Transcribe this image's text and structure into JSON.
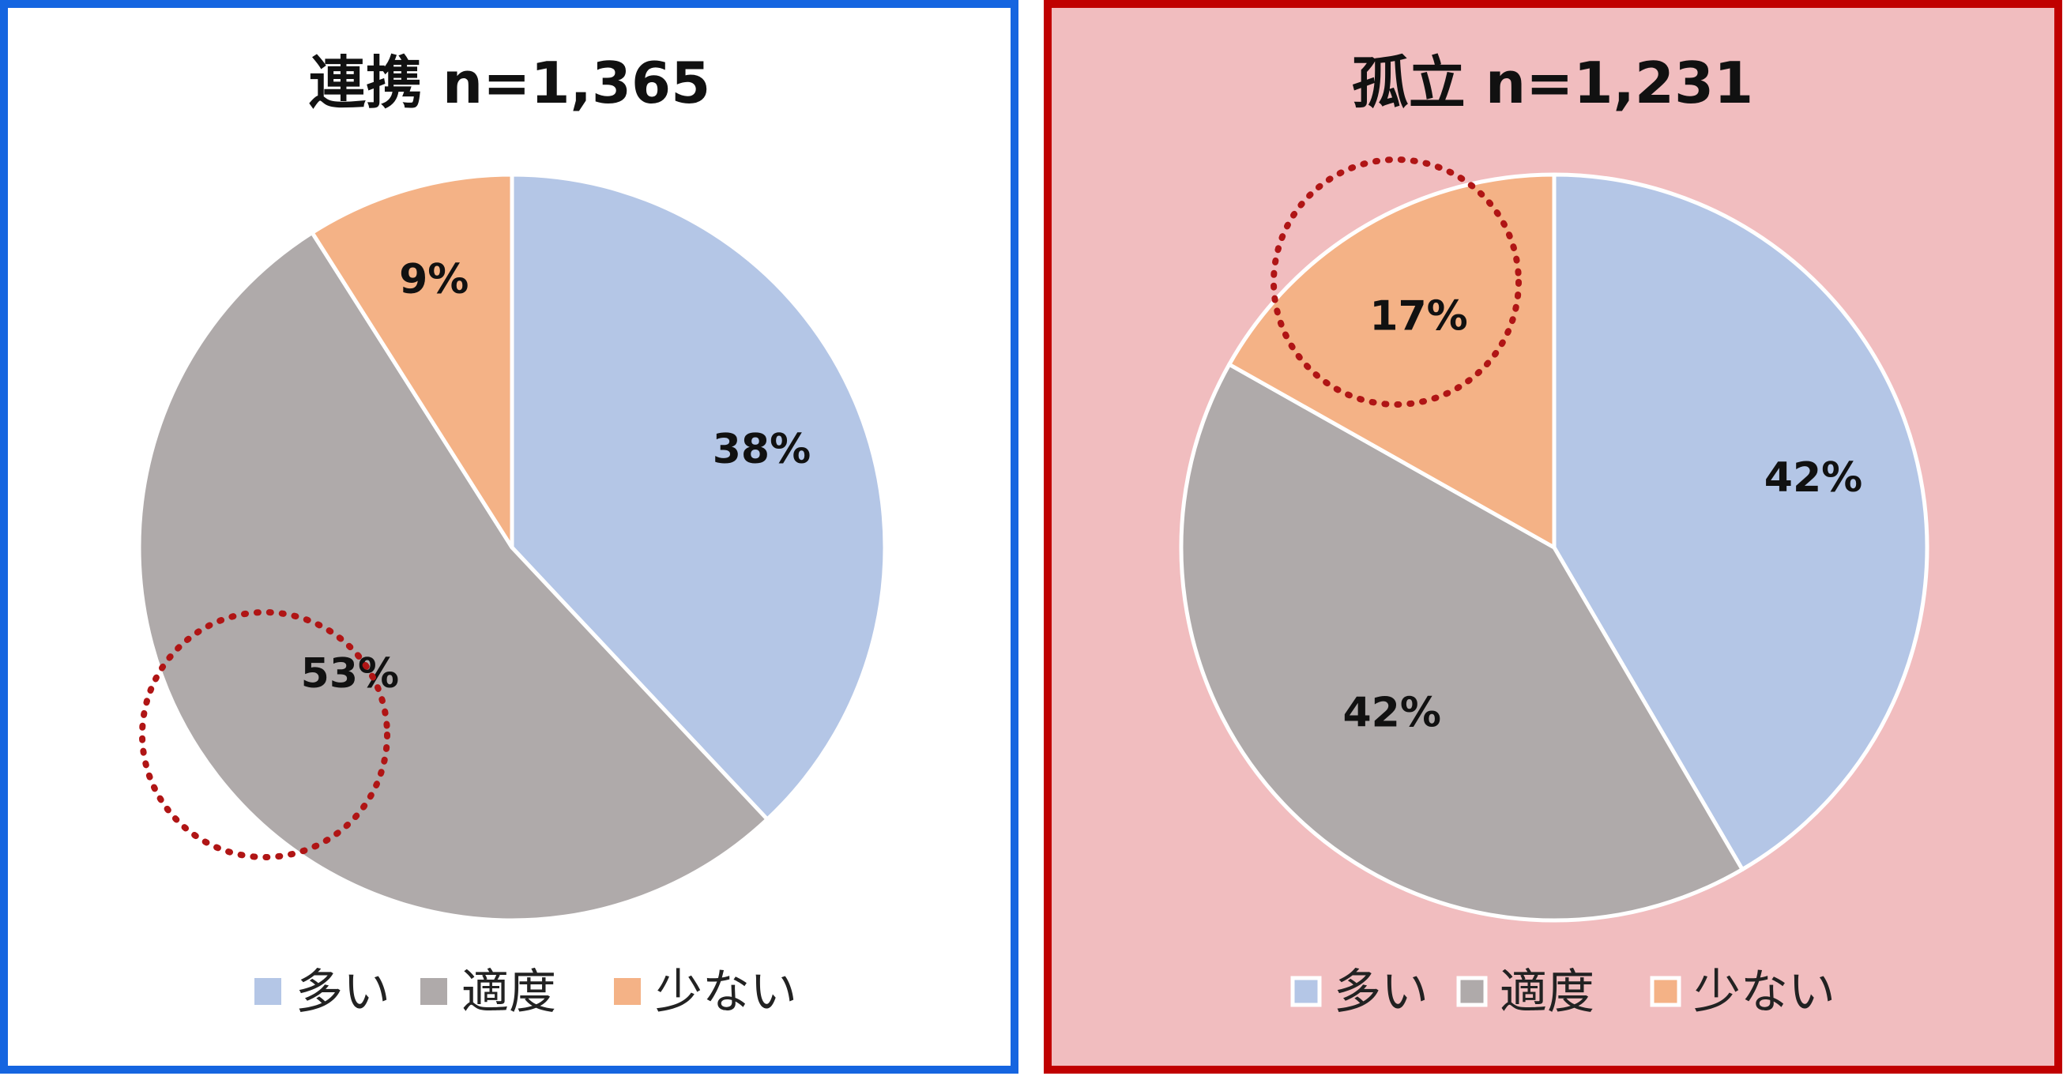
{
  "chart_data": [
    {
      "type": "pie",
      "title": "連携 n=1,365",
      "n": 1365,
      "panel_background": "#ffffff",
      "border_color": "#1565e0",
      "slices": [
        {
          "category": "多い",
          "value": 38,
          "label": "38%",
          "color": "#b4c6e6"
        },
        {
          "category": "適度",
          "value": 53,
          "label": "53%",
          "color": "#afaaaa",
          "highlighted": true
        },
        {
          "category": "少ない",
          "value": 9,
          "label": "9%",
          "color": "#f4b286"
        }
      ],
      "legend": {
        "placement": "bottom",
        "entries": [
          "多い",
          "適度",
          "少ない"
        ]
      }
    },
    {
      "type": "pie",
      "title": "孤立 n=1,231",
      "n": 1231,
      "panel_background": "#f1bdbf",
      "border_color": "#c00000",
      "slices": [
        {
          "category": "多い",
          "value": 42,
          "label": "42%",
          "color": "#b4c6e6"
        },
        {
          "category": "適度",
          "value": 42,
          "label": "42%",
          "color": "#afaaaa"
        },
        {
          "category": "少ない",
          "value": 17,
          "label": "17%",
          "color": "#f4b286",
          "highlighted": true
        }
      ],
      "legend": {
        "placement": "bottom",
        "entries": [
          "多い",
          "適度",
          "少ない"
        ]
      }
    }
  ],
  "highlight_color": "#b01515"
}
